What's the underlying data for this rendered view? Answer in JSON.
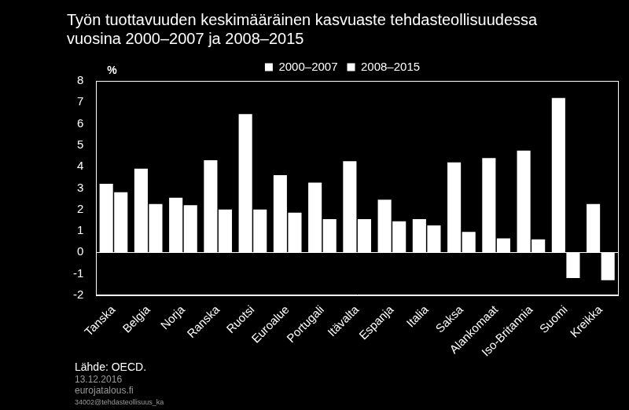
{
  "chart_data": {
    "type": "bar",
    "title": [
      "Työn tuottavuuden keskimääräinen kasvuaste tehdasteollisuudessa",
      "vuosina 2000–2007 ja 2008–2015"
    ],
    "y_label": "%",
    "categories": [
      "Tanska",
      "Belgia",
      "Norja",
      "Ranska",
      "Ruotsi",
      "Euroalue",
      "Portugali",
      "Itävalta",
      "Espanja",
      "Italia",
      "Saksa",
      "Alankomaat",
      "Iso-Britannia",
      "Suomi",
      "Kreikka"
    ],
    "series": [
      {
        "name": "2000–2007",
        "color": "#ffffff",
        "values": [
          3.2,
          3.9,
          2.55,
          4.3,
          6.45,
          3.6,
          3.25,
          4.25,
          2.45,
          1.55,
          4.2,
          4.4,
          4.75,
          7.2,
          2.25
        ]
      },
      {
        "name": "2008–2015",
        "color": "#ffffff",
        "values": [
          2.8,
          2.25,
          2.2,
          2.0,
          2.0,
          1.85,
          1.55,
          1.55,
          1.45,
          1.25,
          0.95,
          0.65,
          0.6,
          -1.2,
          -1.3
        ]
      }
    ],
    "ylim": [
      -2,
      8
    ],
    "yticks": [
      -2,
      -1,
      0,
      1,
      2,
      3,
      4,
      5,
      6,
      7,
      8
    ],
    "grid": false,
    "legend": "top",
    "annotations": [
      "Lähde: OECD.",
      "13.12.2016",
      "eurojatalous.fi",
      "34002@tehdasteollisuus_ka"
    ]
  }
}
